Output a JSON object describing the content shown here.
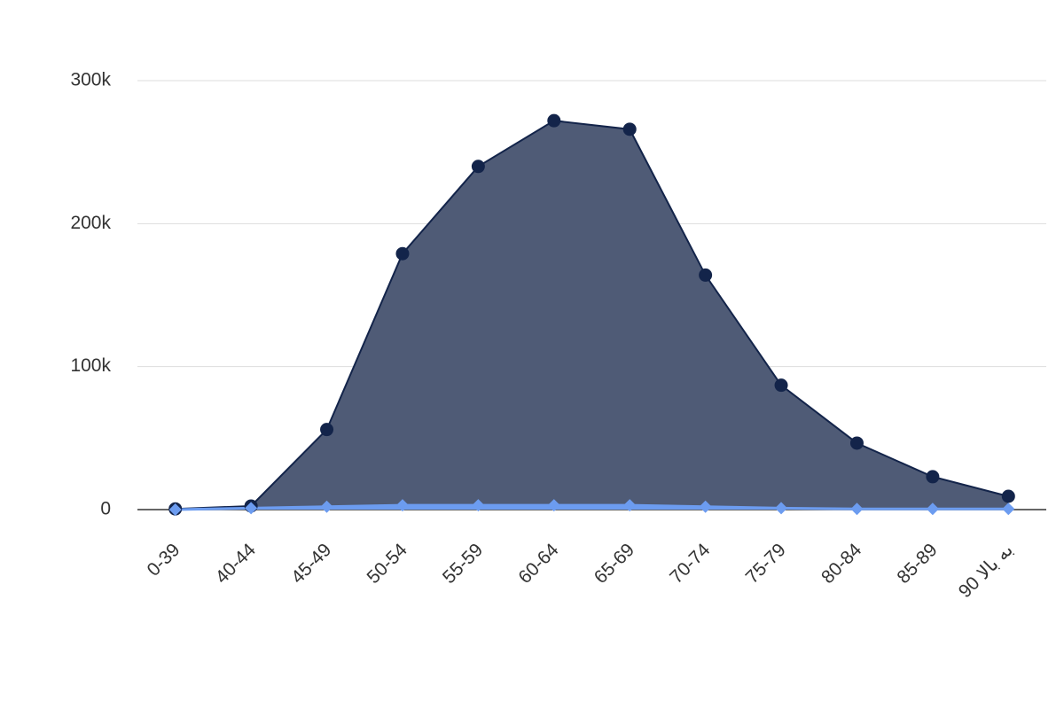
{
  "chart_data": {
    "type": "area",
    "categories": [
      "0-39",
      "40-44",
      "45-49",
      "50-54",
      "55-59",
      "60-64",
      "65-69",
      "70-74",
      "75-79",
      "80-84",
      "85-89",
      "90 به بالا"
    ],
    "series": [
      {
        "color": "#13244a",
        "fill": "#4f5b76",
        "marker": "circle",
        "values": [
          500,
          2500,
          56000,
          179000,
          240000,
          272000,
          266000,
          164000,
          87000,
          46500,
          23000,
          9300
        ]
      },
      {
        "color": "#6c9cf0",
        "fill": "#6c9cf0",
        "marker": "diamond",
        "values": [
          0,
          1000,
          2000,
          3000,
          3000,
          3000,
          3000,
          2000,
          1000,
          500,
          500,
          500
        ]
      }
    ],
    "ylim": [
      0,
      300000
    ],
    "yticks": [
      0,
      {
        "value": 100000,
        "label": "100k"
      },
      {
        "value": 200000,
        "label": "200k"
      },
      {
        "value": 300000,
        "label": "300k"
      }
    ],
    "grid": true
  }
}
